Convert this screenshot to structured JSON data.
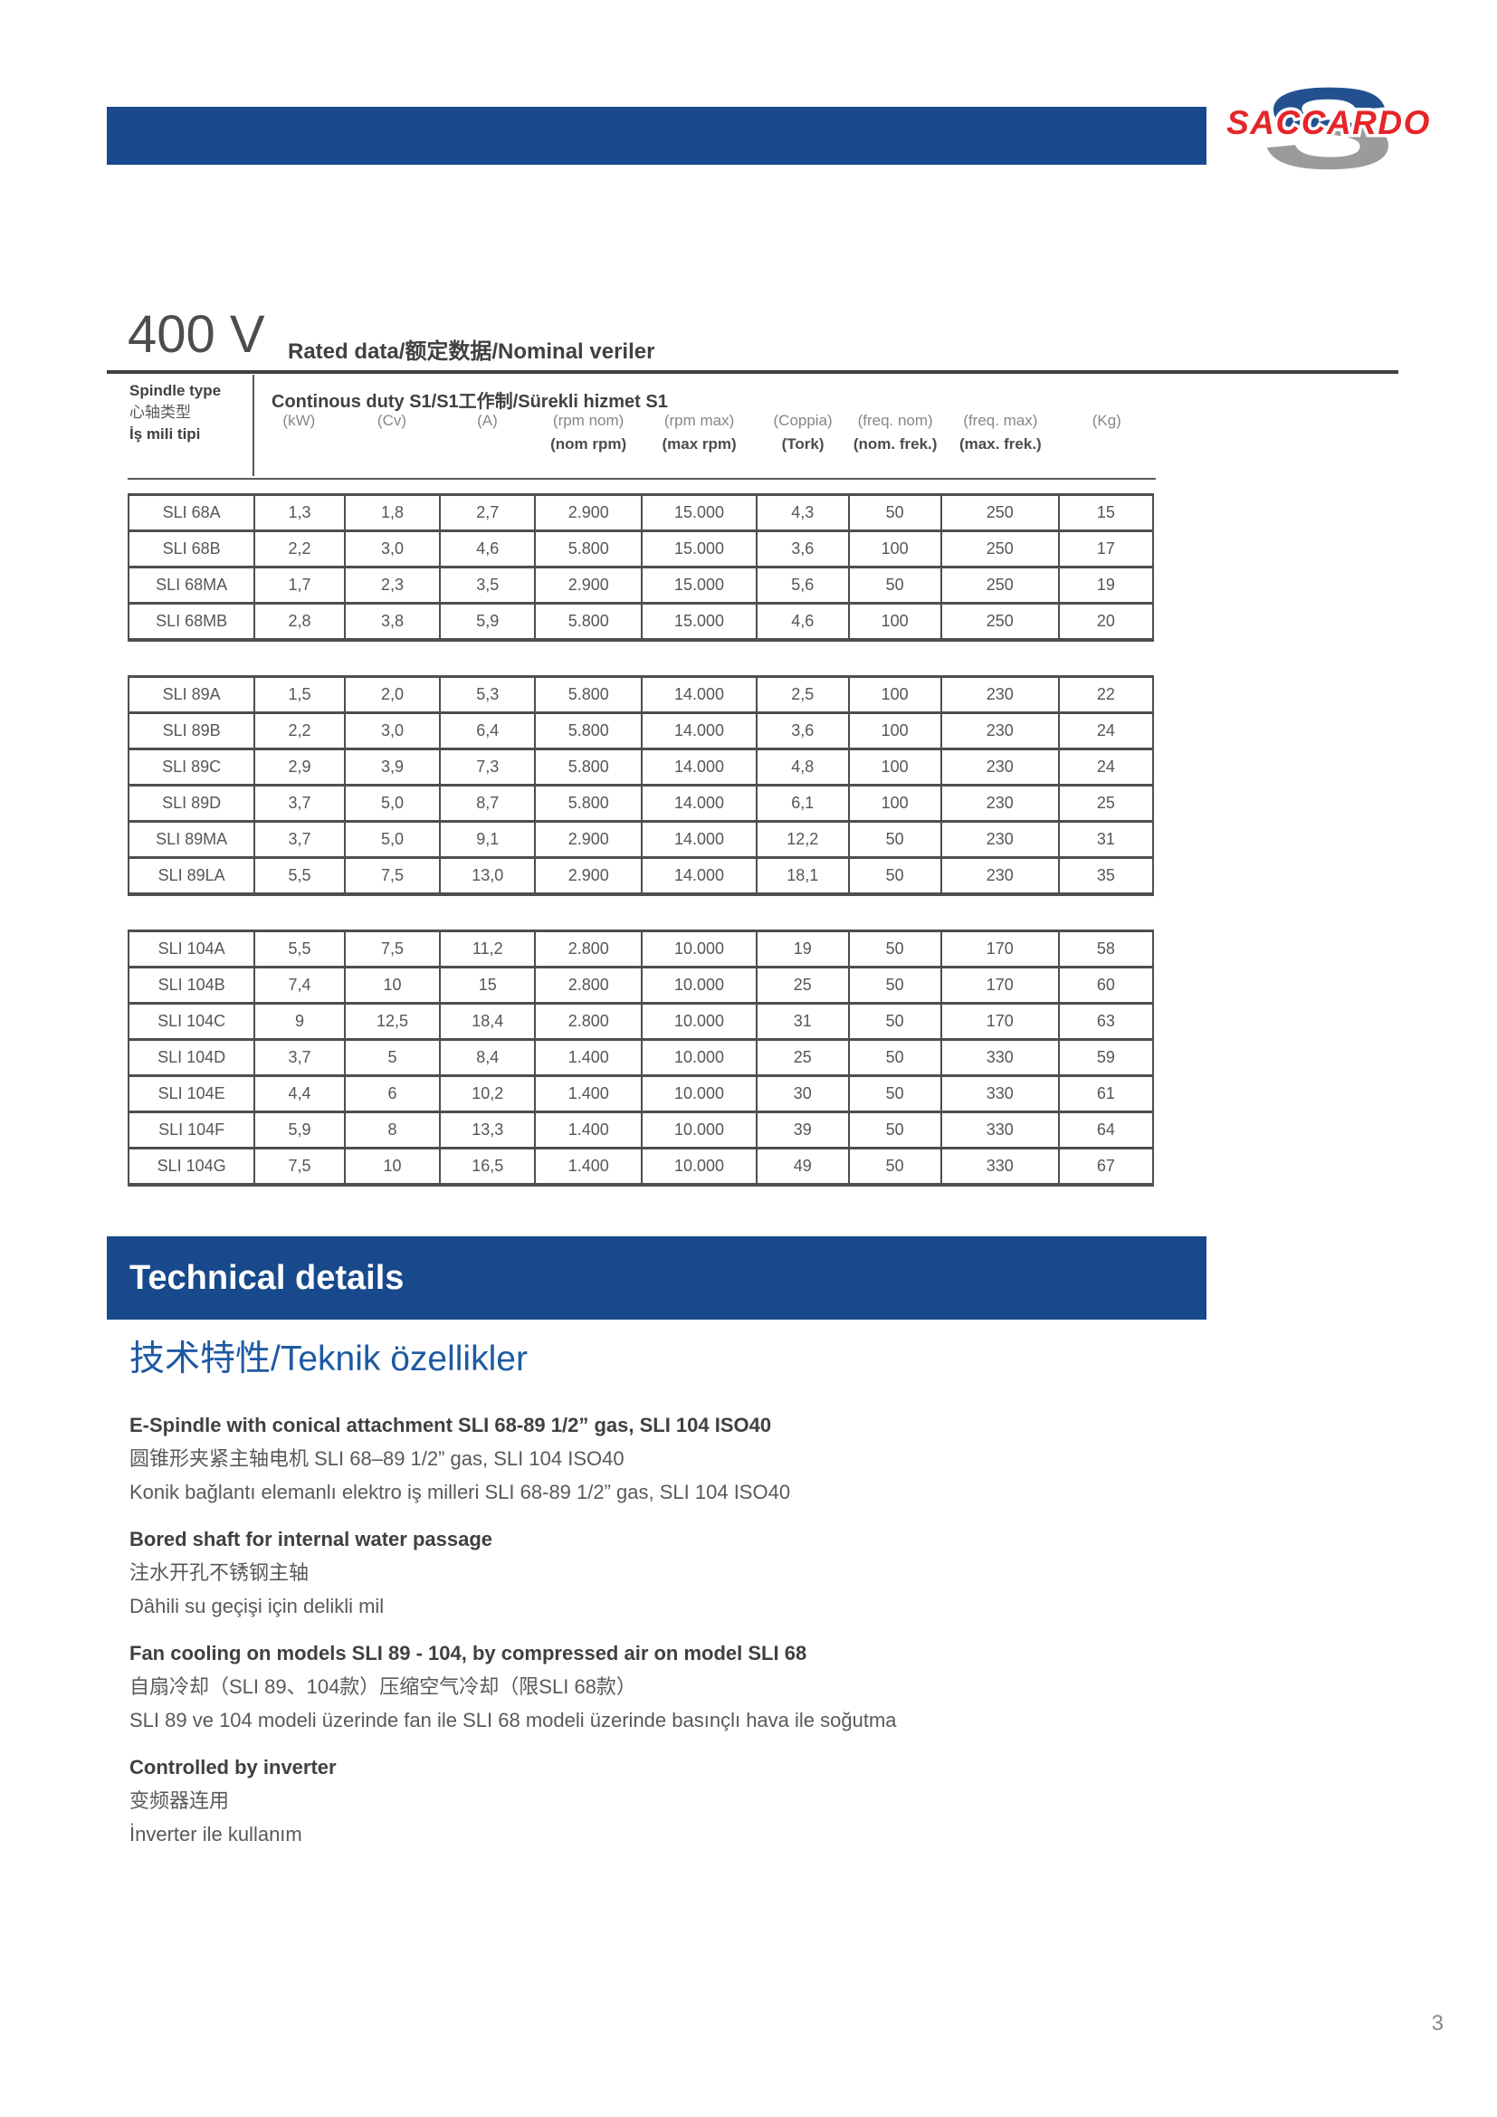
{
  "logo": {
    "brand": "SACCARDO",
    "monogram": "S"
  },
  "header": {
    "voltage": "400 V",
    "rated_label": "Rated data/额定数据/Nominal veriler"
  },
  "rated_table": {
    "spindle_type_lines": [
      "Spindle type",
      "心轴类型",
      "İş mili tipi"
    ],
    "duty_label": "Continous duty S1/S1工作制/Sürekli hizmet S1",
    "unit_columns": [
      {
        "top": "(kW)",
        "bottom": ""
      },
      {
        "top": "(Cv)",
        "bottom": ""
      },
      {
        "top": "(A)",
        "bottom": ""
      },
      {
        "top": "(rpm nom)",
        "bottom": "(nom rpm)"
      },
      {
        "top": "(rpm max)",
        "bottom": "(max rpm)"
      },
      {
        "top": "(Coppia)",
        "bottom": "(Tork)"
      },
      {
        "top": "(freq. nom)",
        "bottom": "(nom. frek.)"
      },
      {
        "top": "(freq. max)",
        "bottom": "(max. frek.)"
      },
      {
        "top": "(Kg)",
        "bottom": ""
      }
    ],
    "blocks": [
      {
        "rows": [
          [
            "SLI 68A",
            "1,3",
            "1,8",
            "2,7",
            "2.900",
            "15.000",
            "4,3",
            "50",
            "250",
            "15"
          ],
          [
            "SLI 68B",
            "2,2",
            "3,0",
            "4,6",
            "5.800",
            "15.000",
            "3,6",
            "100",
            "250",
            "17"
          ],
          [
            "SLI 68MA",
            "1,7",
            "2,3",
            "3,5",
            "2.900",
            "15.000",
            "5,6",
            "50",
            "250",
            "19"
          ],
          [
            "SLI 68MB",
            "2,8",
            "3,8",
            "5,9",
            "5.800",
            "15.000",
            "4,6",
            "100",
            "250",
            "20"
          ]
        ]
      },
      {
        "rows": [
          [
            "SLI 89A",
            "1,5",
            "2,0",
            "5,3",
            "5.800",
            "14.000",
            "2,5",
            "100",
            "230",
            "22"
          ],
          [
            "SLI 89B",
            "2,2",
            "3,0",
            "6,4",
            "5.800",
            "14.000",
            "3,6",
            "100",
            "230",
            "24"
          ],
          [
            "SLI 89C",
            "2,9",
            "3,9",
            "7,3",
            "5.800",
            "14.000",
            "4,8",
            "100",
            "230",
            "24"
          ],
          [
            "SLI 89D",
            "3,7",
            "5,0",
            "8,7",
            "5.800",
            "14.000",
            "6,1",
            "100",
            "230",
            "25"
          ],
          [
            "SLI 89MA",
            "3,7",
            "5,0",
            "9,1",
            "2.900",
            "14.000",
            "12,2",
            "50",
            "230",
            "31"
          ],
          [
            "SLI 89LA",
            "5,5",
            "7,5",
            "13,0",
            "2.900",
            "14.000",
            "18,1",
            "50",
            "230",
            "35"
          ]
        ]
      },
      {
        "rows": [
          [
            "SLI 104A",
            "5,5",
            "7,5",
            "11,2",
            "2.800",
            "10.000",
            "19",
            "50",
            "170",
            "58"
          ],
          [
            "SLI 104B",
            "7,4",
            "10",
            "15",
            "2.800",
            "10.000",
            "25",
            "50",
            "170",
            "60"
          ],
          [
            "SLI 104C",
            "9",
            "12,5",
            "18,4",
            "2.800",
            "10.000",
            "31",
            "50",
            "170",
            "63"
          ],
          [
            "SLI 104D",
            "3,7",
            "5",
            "8,4",
            "1.400",
            "10.000",
            "25",
            "50",
            "330",
            "59"
          ],
          [
            "SLI 104E",
            "4,4",
            "6",
            "10,2",
            "1.400",
            "10.000",
            "30",
            "50",
            "330",
            "61"
          ],
          [
            "SLI 104F",
            "5,9",
            "8",
            "13,3",
            "1.400",
            "10.000",
            "39",
            "50",
            "330",
            "64"
          ],
          [
            "SLI 104G",
            "7,5",
            "10",
            "16,5",
            "1.400",
            "10.000",
            "49",
            "50",
            "330",
            "67"
          ]
        ]
      }
    ]
  },
  "technical": {
    "banner": "Technical details",
    "subtitle": "技术特性/Teknik özellikler",
    "paragraphs": [
      {
        "headline": "E-Spindle with conical attachment SLI 68-89 1/2” gas, SLI 104 ISO40",
        "lines": [
          "圆锥形夹紧主轴电机 SLI 68–89 1/2” gas, SLI 104 ISO40",
          "Konik bağlantı elemanlı elektro iş milleri SLI 68-89 1/2” gas, SLI 104 ISO40"
        ]
      },
      {
        "headline": "Bored shaft for internal water passage",
        "lines": [
          "注水开孔不锈钢主轴",
          "Dâhili su geçişi için delikli mil"
        ]
      },
      {
        "headline": "Fan cooling on models SLI 89 - 104, by compressed air on model SLI 68",
        "lines": [
          "自扇冷却（SLI 89、104款）压缩空气冷却（限SLI 68款）",
          "SLI 89 ve 104 modeli üzerinde fan ile SLI 68 modeli üzerinde basınçlı hava ile soğutma"
        ]
      },
      {
        "headline": "Controlled by inverter",
        "lines": [
          "变频器连用",
          "İnverter ile kullanım"
        ]
      }
    ]
  },
  "footer": {
    "page_number": "3"
  },
  "colors": {
    "brand_blue": "#17498c",
    "blue_text": "#1d5aa4",
    "logo_red": "#e52528",
    "logo_blue": "#23518f",
    "logo_gray": "#9b9b9d",
    "text_dark": "#414042",
    "text_medium": "#58595b",
    "text_light": "#85878a"
  }
}
